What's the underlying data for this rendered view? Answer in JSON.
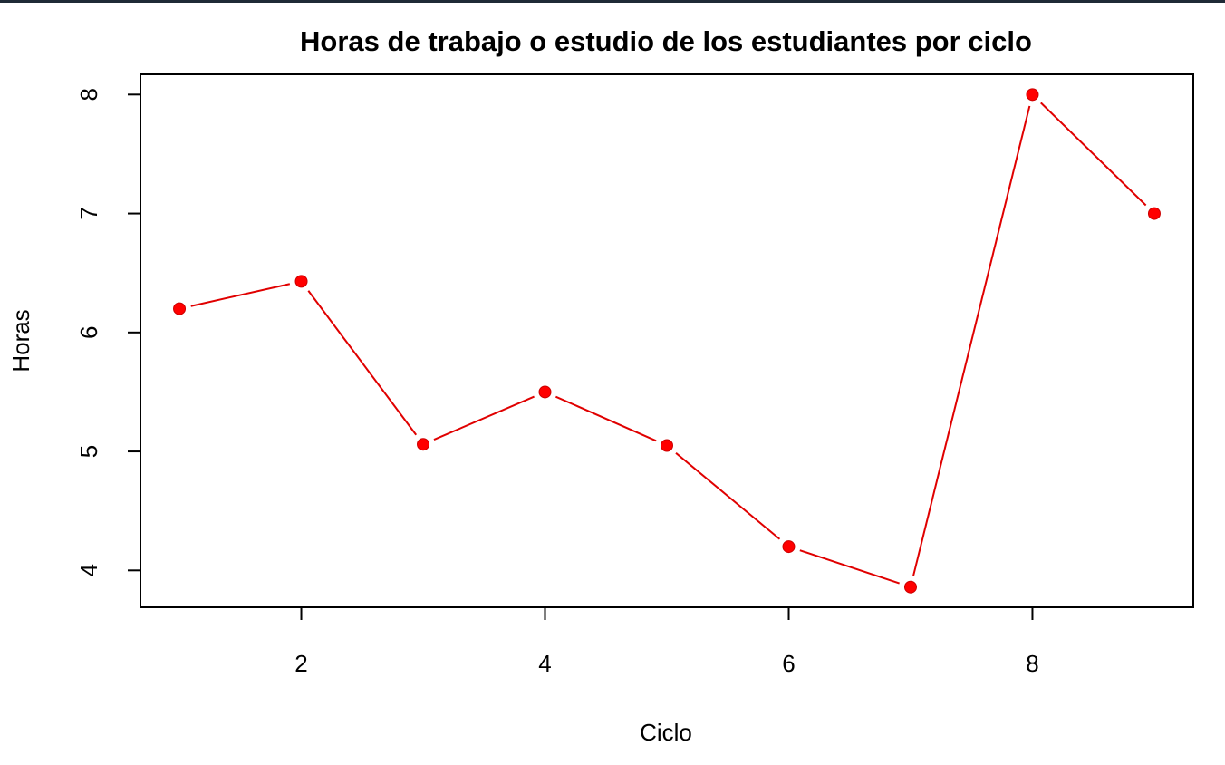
{
  "chart_data": {
    "type": "line",
    "title": "Horas de trabajo o estudio de los estudiantes por ciclo",
    "xlabel": "Ciclo",
    "ylabel": "Horas",
    "x": [
      1,
      2,
      3,
      4,
      5,
      6,
      7,
      8,
      9
    ],
    "series": [
      {
        "values": [
          6.2,
          6.43,
          5.06,
          5.5,
          5.05,
          4.2,
          3.86,
          8.0,
          7.0
        ],
        "color": "#e00000"
      }
    ],
    "x_ticks": [
      2,
      4,
      6,
      8
    ],
    "y_ticks": [
      4,
      5,
      6,
      7,
      8
    ],
    "xlim": [
      0.68,
      9.32
    ],
    "ylim": [
      3.69,
      8.17
    ],
    "grid": false,
    "legend": "none",
    "point_color": "#ff0000"
  }
}
